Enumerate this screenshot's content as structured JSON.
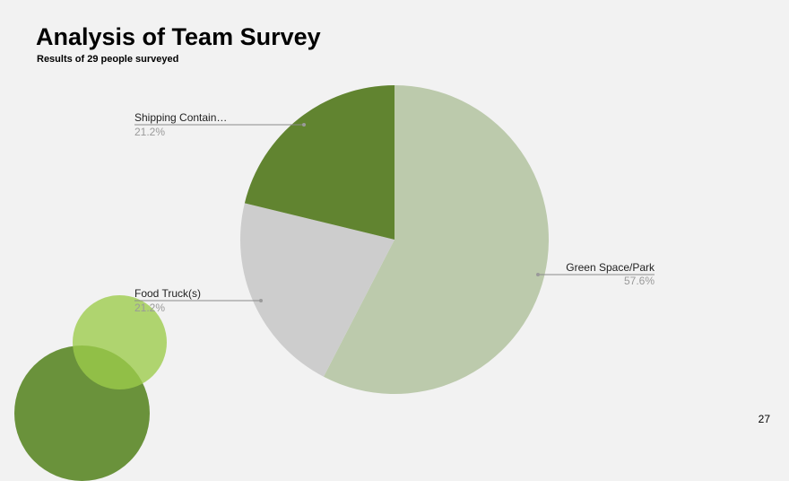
{
  "slide": {
    "title": "Analysis of Team Survey",
    "subtitle": "Results of 29 people surveyed",
    "page_number": "27"
  },
  "colors": {
    "background": "#f2f2f2",
    "deco_dark_green": "#5e8a2b",
    "deco_light_green": "#9ccc4a"
  },
  "chart_data": {
    "type": "pie",
    "title": "",
    "series": [
      {
        "name": "Green Space/Park",
        "value": 57.6,
        "label": "57.6%",
        "color": "#bccaac"
      },
      {
        "name": "Food Truck(s)",
        "value": 21.2,
        "label": "21.2%",
        "color": "#cdcdcd"
      },
      {
        "name": "Shipping Contain…",
        "value": 21.2,
        "label": "21.2%",
        "color": "#618430"
      }
    ],
    "start": "12 o'clock",
    "direction": "clockwise",
    "legend": "none"
  }
}
